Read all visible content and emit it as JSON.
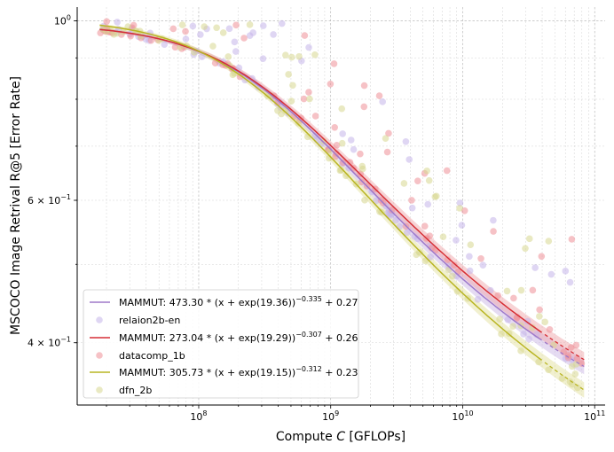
{
  "chart_data": {
    "type": "scatter",
    "xlabel_pre": "Compute ",
    "xlabel_var": "C",
    "xlabel_post": " [GFLOPs]",
    "ylabel": "MSCOCO Image Retrival R@5 [Error Rate]",
    "xscale": "log",
    "yscale": "log",
    "xlim": [
      12000000,
      120000000000
    ],
    "ylim": [
      0.335,
      1.04
    ],
    "x_tick_labels": [
      {
        "value": 100000000,
        "base": "10",
        "exp": "8"
      },
      {
        "value": 1000000000,
        "base": "10",
        "exp": "9"
      },
      {
        "value": 10000000000,
        "base": "10",
        "exp": "10"
      },
      {
        "value": 100000000000,
        "base": "10",
        "exp": "11"
      }
    ],
    "y_tick_labels": [
      {
        "value": 1.0,
        "base": "10",
        "exp": "0",
        "coef": ""
      },
      {
        "value": 0.6,
        "base": "10",
        "exp": "−1",
        "coef": "6 × "
      },
      {
        "value": 0.4,
        "base": "10",
        "exp": "−1",
        "coef": "4 × "
      }
    ],
    "grid": true,
    "legend_position": "lower-left",
    "series": [
      {
        "name": "relaion2b-en",
        "fit_label_pre": "MAMMUT: 473.30 * (x + exp(19.36))",
        "fit_label_exp": "−0.335",
        "fit_label_post": " + 0.27",
        "fit": {
          "a": 473.3,
          "b": 19.36,
          "alpha": 0.335,
          "c": 0.27
        },
        "line_color": "#9f79c9",
        "band_color": "#cbb8e6",
        "point_color": "#c4b5ea",
        "seed": 11
      },
      {
        "name": "datacomp_1b",
        "fit_label_pre": "MAMMUT: 273.04 * (x + exp(19.29))",
        "fit_label_exp": "−0.307",
        "fit_label_post": " + 0.26",
        "fit": {
          "a": 273.04,
          "b": 19.29,
          "alpha": 0.307,
          "c": 0.26
        },
        "line_color": "#d62f36",
        "band_color": "#f0a8ab",
        "point_color": "#ef8f98",
        "seed": 29
      },
      {
        "name": "dfn_2b",
        "fit_label_pre": "MAMMUT: 305.73 * (x + exp(19.15))",
        "fit_label_exp": "−0.312",
        "fit_label_post": " + 0.23",
        "fit": {
          "a": 305.73,
          "b": 19.15,
          "alpha": 0.312,
          "c": 0.23
        },
        "line_color": "#b9b523",
        "band_color": "#e3e1a0",
        "point_color": "#d7d78f",
        "seed": 47
      }
    ]
  }
}
